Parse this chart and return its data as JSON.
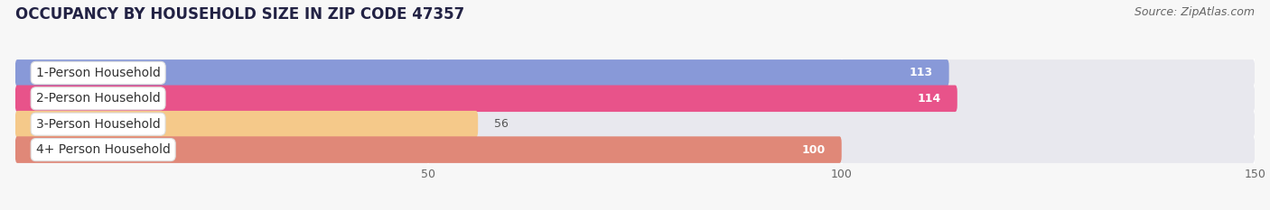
{
  "title": "OCCUPANCY BY HOUSEHOLD SIZE IN ZIP CODE 47357",
  "source": "Source: ZipAtlas.com",
  "categories": [
    "1-Person Household",
    "2-Person Household",
    "3-Person Household",
    "4+ Person Household"
  ],
  "values": [
    113,
    114,
    56,
    100
  ],
  "bar_colors": [
    "#8899d8",
    "#e8538a",
    "#f5c98a",
    "#e08878"
  ],
  "bar_bg_color": "#e8e8ee",
  "xlim": [
    0,
    150
  ],
  "xticks": [
    50,
    100,
    150
  ],
  "title_fontsize": 12,
  "source_fontsize": 9,
  "label_fontsize": 10,
  "value_fontsize": 9,
  "background_color": "#f7f7f7",
  "value_inside_color": "white",
  "value_outside_color": "#555555"
}
